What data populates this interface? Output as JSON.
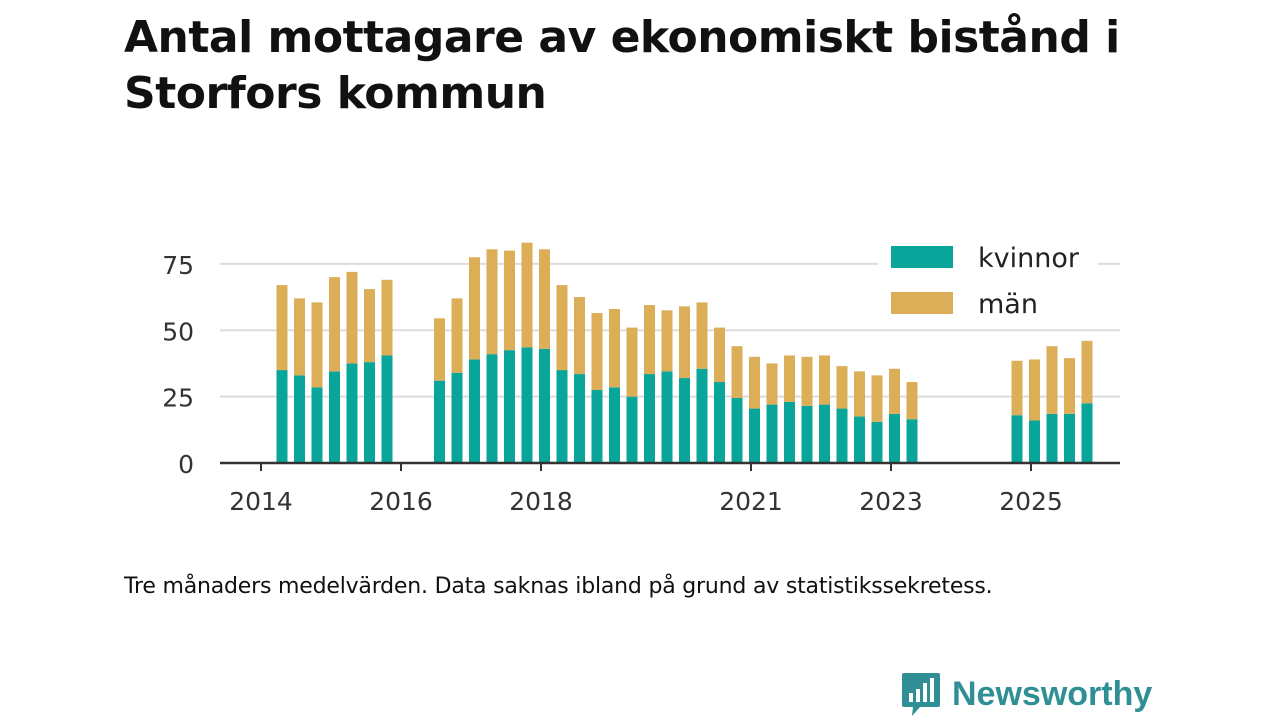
{
  "title": "Antal mottagare av ekonomiskt bistånd i Storfors kommun",
  "caption": "Tre månaders medelvärden. Data saknas ibland på grund av statistikssekretess.",
  "brand": {
    "name": "Newsworthy",
    "icon": "bar-chart-speech-bubble-icon"
  },
  "colors": {
    "kvinnor": "#0aa59a",
    "man": "#dcae57",
    "grid": "#dddddd",
    "axis": "#333333",
    "brand": "#2f8f94"
  },
  "chart_data": {
    "type": "bar",
    "stacked": true,
    "title": "Antal mottagare av ekonomiskt bistånd i Storfors kommun",
    "xlabel": "",
    "ylabel": "",
    "ylim": [
      0,
      90
    ],
    "yticks": [
      0,
      25,
      50,
      75
    ],
    "grid": true,
    "legend_position": "top-right",
    "x_ticks": [
      {
        "label": "2014",
        "x": 2014.0
      },
      {
        "label": "2016",
        "x": 2016.0
      },
      {
        "label": "2018",
        "x": 2018.0
      },
      {
        "label": "2021",
        "x": 2021.0
      },
      {
        "label": "2023",
        "x": 2023.0
      },
      {
        "label": "2025",
        "x": 2025.0
      }
    ],
    "x": [
      2014.3,
      2014.55,
      2014.8,
      2015.05,
      2015.3,
      2015.55,
      2015.8,
      2016.55,
      2016.8,
      2017.05,
      2017.3,
      2017.55,
      2017.8,
      2018.05,
      2018.3,
      2018.55,
      2018.8,
      2019.05,
      2019.3,
      2019.55,
      2019.8,
      2020.05,
      2020.3,
      2020.55,
      2020.8,
      2021.05,
      2021.3,
      2021.55,
      2021.8,
      2022.05,
      2022.3,
      2022.55,
      2022.8,
      2023.05,
      2023.3,
      2024.8,
      2025.05,
      2025.3,
      2025.55,
      2025.8
    ],
    "series": [
      {
        "name": "kvinnor",
        "color": "#0aa59a",
        "values": [
          35,
          33,
          28.5,
          34.5,
          37.5,
          38,
          40.5,
          31,
          34,
          39,
          41,
          42.5,
          43.5,
          43,
          35,
          33.5,
          27.5,
          28.5,
          25,
          33.5,
          34.5,
          32,
          35.5,
          30.5,
          24.5,
          20.5,
          22,
          23,
          21.5,
          22,
          20.5,
          17.5,
          15.5,
          18.5,
          16.5,
          18,
          16,
          18.5,
          18.5,
          22.5
        ]
      },
      {
        "name": "män",
        "color": "#dcae57",
        "values": [
          32,
          29,
          32,
          35.5,
          34.5,
          27.5,
          28.5,
          23.5,
          28,
          38.5,
          39.5,
          37.5,
          39.5,
          37.5,
          32,
          29,
          29,
          29.5,
          26,
          26,
          23,
          27,
          25,
          20.5,
          19.5,
          19.5,
          15.5,
          17.5,
          18.5,
          18.5,
          16,
          17,
          17.5,
          17,
          14,
          20.5,
          23,
          25.5,
          21,
          23.5
        ]
      }
    ]
  }
}
